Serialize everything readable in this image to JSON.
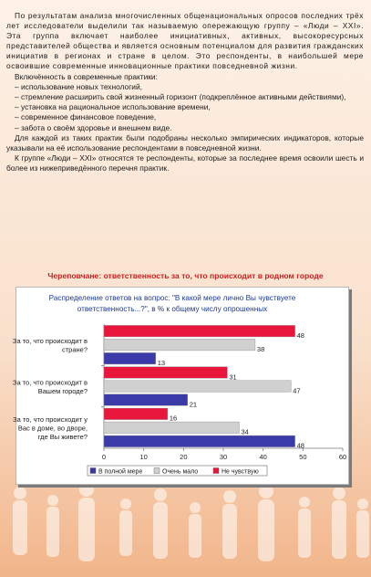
{
  "body": {
    "p1": "По результатам анализа многочисленных общенациональных опросов последних трёх лет исследователи выделили так называемую опережающую группу – «Люди – XXI». Эта группа включает наиболее инициативных, активных, высокоресурсных представителей общества и является основным потенциалом для развития гражданских инициатив в регионах и стране в целом. Это респонденты, в наибольшей мере освоившие современные инновационные практики повседневной жизни.",
    "p2": "Включённость в современные практики:",
    "list": [
      "– использование новых технологий,",
      "– стремление расширить свой жизненный горизонт (подкреплённое активными действиями),",
      "– установка на рациональное использование времени,",
      "– современное финансовое поведение,",
      "– забота о своём здоровье и внешнем виде."
    ],
    "p3": "Для каждой из таких практик были подобраны несколько эмпирических индикаторов, которые указывали на её использование респондентами в повседневной жизни.",
    "p4": "К группе «Люди – XXI» относятся те респонденты, которые за последнее время освоили шесть и более из нижеприведённого перечня практик."
  },
  "chart_data": {
    "type": "bar",
    "orientation": "horizontal",
    "title": "Череповчане: ответственность за то, что происходит в родном городе",
    "subtitle": "Распределение ответов на вопрос: \"В какой мере лично Вы чувствуете ответственность...?\", в % к общему числу опрошенных",
    "categories": [
      "За то, что происходит в стране?",
      "За то, что происходит в Вашем городе?",
      "За то, что происходит у Вас в доме, во дворе, где Вы живете?"
    ],
    "category_lines": [
      [
        "За то, что происходит в",
        "стране?"
      ],
      [
        "За то, что происходит в",
        "Вашем городе?"
      ],
      [
        "За то, что происходит у",
        "Вас в доме, во дворе,",
        "где Вы живете?"
      ]
    ],
    "series": [
      {
        "name": "Не чувствую",
        "values": [
          48,
          31,
          16
        ],
        "color": "#e8163a"
      },
      {
        "name": "Очень мало",
        "values": [
          38,
          47,
          34
        ],
        "color": "#d0d0d0"
      },
      {
        "name": "В полной мере",
        "values": [
          13,
          21,
          48
        ],
        "color": "#3a3aa8"
      }
    ],
    "legend_order": [
      "В полной мере",
      "Очень мало",
      "Не чувствую"
    ],
    "xlim": [
      0,
      60
    ],
    "xticks": [
      0,
      10,
      20,
      30,
      40,
      50,
      60
    ],
    "legend_position": "bottom-left",
    "grid": false
  }
}
